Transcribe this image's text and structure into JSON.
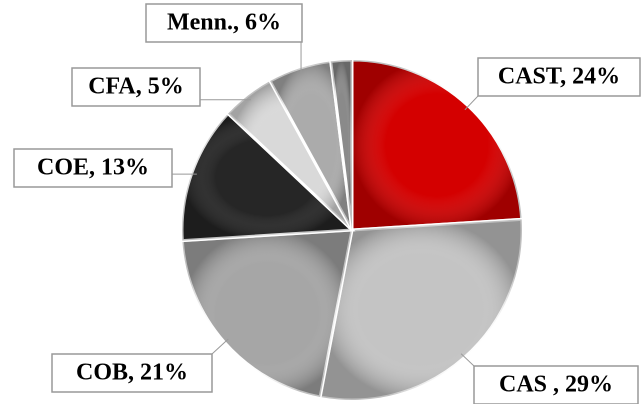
{
  "chart_data": {
    "type": "pie",
    "labels": [
      "CAST, 24%",
      "CAS , 29%",
      "COB, 21%",
      "COE, 13%",
      "CFA, 5%",
      "Menn., 6%",
      null
    ],
    "values": [
      24,
      29,
      21,
      13,
      5,
      6,
      2
    ],
    "colors": [
      "#d40000",
      "#c4c4c4",
      "#a6a6a6",
      "#262626",
      "#d9d9d9",
      "#ababab",
      "#8a8a8a"
    ]
  }
}
